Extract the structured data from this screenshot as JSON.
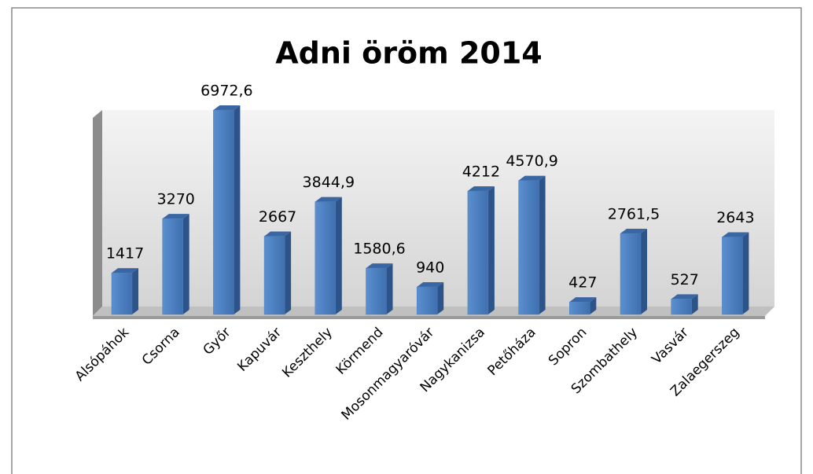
{
  "chart_data": {
    "type": "bar3d",
    "title": "Adni öröm 2014",
    "categories": [
      "Alsópáhok",
      "Csorna",
      "Győr",
      "Kapuvár",
      "Keszthely",
      "Körmend",
      "Mosonmagyaróvár",
      "Nagykanizsa",
      "Petőháza",
      "Sopron",
      "Szombathely",
      "Vasvár",
      "Zalaegerszeg"
    ],
    "values": [
      1417,
      3270,
      6972.6,
      2667,
      3844.9,
      1580.6,
      940,
      4212,
      4570.9,
      427,
      2761.5,
      527,
      2643
    ],
    "value_labels": [
      "1417",
      "3270",
      "6972,6",
      "2667",
      "3844,9",
      "1580,6",
      "940",
      "4212",
      "4570,9",
      "427",
      "2761,5",
      "527",
      "2643"
    ],
    "color": "#4a7ebb",
    "ylim": [
      0,
      7000
    ]
  }
}
